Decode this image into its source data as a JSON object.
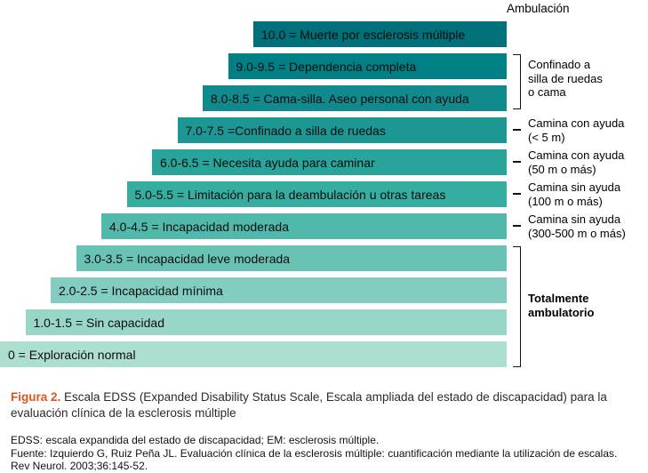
{
  "figure": {
    "heading": "Ambulación",
    "bars": [
      {
        "label": "10.0 = Muerte por esclerosis múltiple",
        "color": "#00707A"
      },
      {
        "label": "9.0-9.5 = Dependencia completa",
        "color": "#007F84"
      },
      {
        "label": "8.0-8.5 = Cama-silla. Aseo personal con ayuda",
        "color": "#108A8C"
      },
      {
        "label": "7.0-7.5 =Confinado a silla de ruedas",
        "color": "#1C9794"
      },
      {
        "label": "6.0-6.5 = Necesita ayuda para caminar",
        "color": "#28A49B"
      },
      {
        "label": "5.0-5.5 = Limitación para la deambulación u otras tareas",
        "color": "#36ADA1"
      },
      {
        "label": "4.0-4.5 = Incapacidad moderada",
        "color": "#50B9AC"
      },
      {
        "label": "3.0-3.5 = Incapacidad leve moderada",
        "color": "#69C3B5"
      },
      {
        "label": "2.0-2.5 = Incapacidad mínima",
        "color": "#82CDBF"
      },
      {
        "label": "1.0-1.5 = Sin capacidad",
        "color": "#98D6C8"
      },
      {
        "label": "0 = Exploración normal",
        "color": "#ACDED1"
      }
    ],
    "annotations": [
      {
        "lines": [
          "Confinado a",
          "silla de ruedas",
          "o cama"
        ]
      },
      {
        "lines": [
          "Camina con ayuda",
          "(< 5 m)"
        ]
      },
      {
        "lines": [
          "Camina con ayuda",
          "(50 m o más)"
        ]
      },
      {
        "lines": [
          "Camina sin ayuda",
          "(100 m o más)"
        ]
      },
      {
        "lines": [
          "Camina sin ayuda",
          "(300-500 m o más)"
        ]
      },
      {
        "lines": [
          "Totalmente",
          "ambulatorio"
        ]
      }
    ]
  },
  "caption": {
    "figure_label": "Figura 2.",
    "title": "Escala EDSS (Expanded Disability Status Scale, Escala ampliada del estado de discapacidad) para la evaluación clínica de la esclerosis múltiple",
    "note_abbrev": "EDSS: escala expandida del estado de discapacidad; EM: esclerosis múltiple.",
    "note_source": "Fuente: Izquierdo G, Ruiz Peña JL. Evaluación clínica de la esclerosis múltiple: cuantificación mediante la utilización de escalas. Rev Neurol. 2003;36:145-52."
  },
  "colors": {
    "figure_label": "#E2531B",
    "bracket": "#111111"
  }
}
